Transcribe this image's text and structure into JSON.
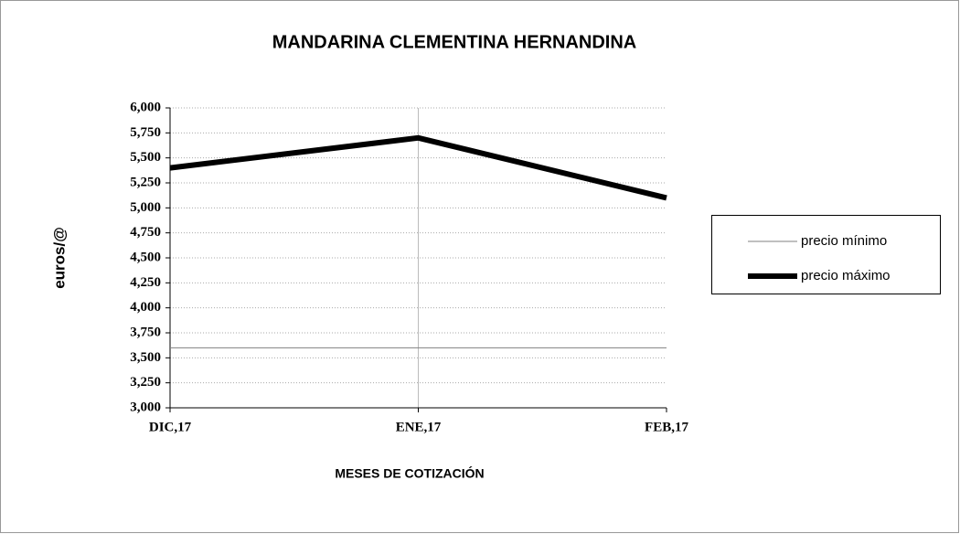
{
  "chart_data": {
    "type": "line",
    "title": "MANDARINA CLEMENTINA HERNANDINA",
    "y_label": "euros/@",
    "x_label": "MESES DE COTIZACIÓN",
    "categories": [
      "DIC,17",
      "ENE,17",
      "FEB,17"
    ],
    "series": [
      {
        "name": "precio mínimo",
        "color": "#808080",
        "values": [
          3.6,
          3.6,
          3.6
        ]
      },
      {
        "name": "precio máximo",
        "color": "#000000",
        "values": [
          5.4,
          5.7,
          5.1
        ]
      }
    ],
    "ylim": [
      3,
      6
    ],
    "yticks": [
      {
        "value": 3,
        "label": "3,000"
      },
      {
        "value": 3.25,
        "label": "3,250"
      },
      {
        "value": 3.5,
        "label": "3,500"
      },
      {
        "value": 3.75,
        "label": "3,750"
      },
      {
        "value": 4,
        "label": "4,000"
      },
      {
        "value": 4.25,
        "label": "4,250"
      },
      {
        "value": 4.5,
        "label": "4,500"
      },
      {
        "value": 4.75,
        "label": "4,750"
      },
      {
        "value": 5,
        "label": "5,000"
      },
      {
        "value": 5.25,
        "label": "5,250"
      },
      {
        "value": 5.5,
        "label": "5,500"
      },
      {
        "value": 5.75,
        "label": "5,750"
      },
      {
        "value": 6,
        "label": "6,000"
      }
    ],
    "grid": true,
    "legend": "right"
  }
}
